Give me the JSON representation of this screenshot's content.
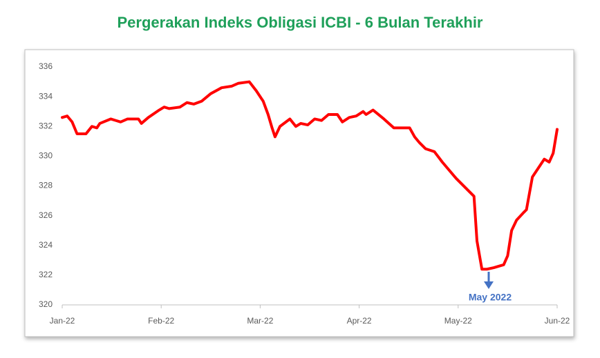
{
  "chart_data": {
    "type": "line",
    "title": "Pergerakan Indeks Obligasi ICBI - 6 Bulan Terakhir",
    "x": [
      0,
      0.05,
      0.1,
      0.15,
      0.24,
      0.3,
      0.35,
      0.38,
      0.49,
      0.54,
      0.59,
      0.66,
      0.77,
      0.8,
      0.87,
      0.98,
      1.03,
      1.08,
      1.19,
      1.26,
      1.33,
      1.41,
      1.5,
      1.61,
      1.71,
      1.78,
      1.89,
      1.96,
      2.03,
      2.08,
      2.12,
      2.15,
      2.2,
      2.3,
      2.36,
      2.41,
      2.48,
      2.55,
      2.62,
      2.69,
      2.78,
      2.83,
      2.9,
      2.97,
      3.04,
      3.07,
      3.14,
      3.25,
      3.35,
      3.51,
      3.56,
      3.61,
      3.67,
      3.76,
      3.84,
      3.98,
      4.16,
      4.19,
      4.24,
      4.29,
      4.36,
      4.46,
      4.5,
      4.54,
      4.59,
      4.66,
      4.69,
      4.75,
      4.82,
      4.87,
      4.92,
      4.96,
      5
    ],
    "series": [
      {
        "name": "ICBI",
        "color": "#ff0000",
        "values": [
          332.6,
          332.7,
          332.3,
          331.5,
          331.5,
          332.0,
          331.9,
          332.2,
          332.5,
          332.4,
          332.3,
          332.5,
          332.5,
          332.2,
          332.6,
          333.1,
          333.3,
          333.2,
          333.3,
          333.6,
          333.5,
          333.7,
          334.2,
          334.6,
          334.7,
          334.9,
          335.0,
          334.4,
          333.7,
          332.8,
          331.9,
          331.3,
          332.0,
          332.5,
          332.0,
          332.2,
          332.1,
          332.5,
          332.4,
          332.8,
          332.8,
          332.3,
          332.6,
          332.7,
          333.0,
          332.8,
          333.1,
          332.5,
          331.9,
          331.9,
          331.3,
          330.9,
          330.5,
          330.3,
          329.6,
          328.5,
          327.3,
          324.3,
          322.4,
          322.4,
          322.5,
          322.7,
          323.3,
          325.0,
          325.7,
          326.2,
          326.4,
          328.6,
          329.3,
          329.8,
          329.6,
          330.2,
          331.8
        ]
      }
    ],
    "xlim": [
      0,
      5
    ],
    "xticks": [
      {
        "value": 0,
        "label": "Jan-22"
      },
      {
        "value": 1,
        "label": "Feb-22"
      },
      {
        "value": 2,
        "label": "Mar-22"
      },
      {
        "value": 3,
        "label": "Apr-22"
      },
      {
        "value": 4,
        "label": "May-22"
      },
      {
        "value": 5,
        "label": "Jun-22"
      }
    ],
    "ylim": [
      320,
      336
    ],
    "yticks": [
      320,
      322,
      324,
      326,
      328,
      330,
      332,
      334,
      336
    ],
    "annotation": "May 2022",
    "annotation_color": "#4472c4",
    "grid": false
  }
}
